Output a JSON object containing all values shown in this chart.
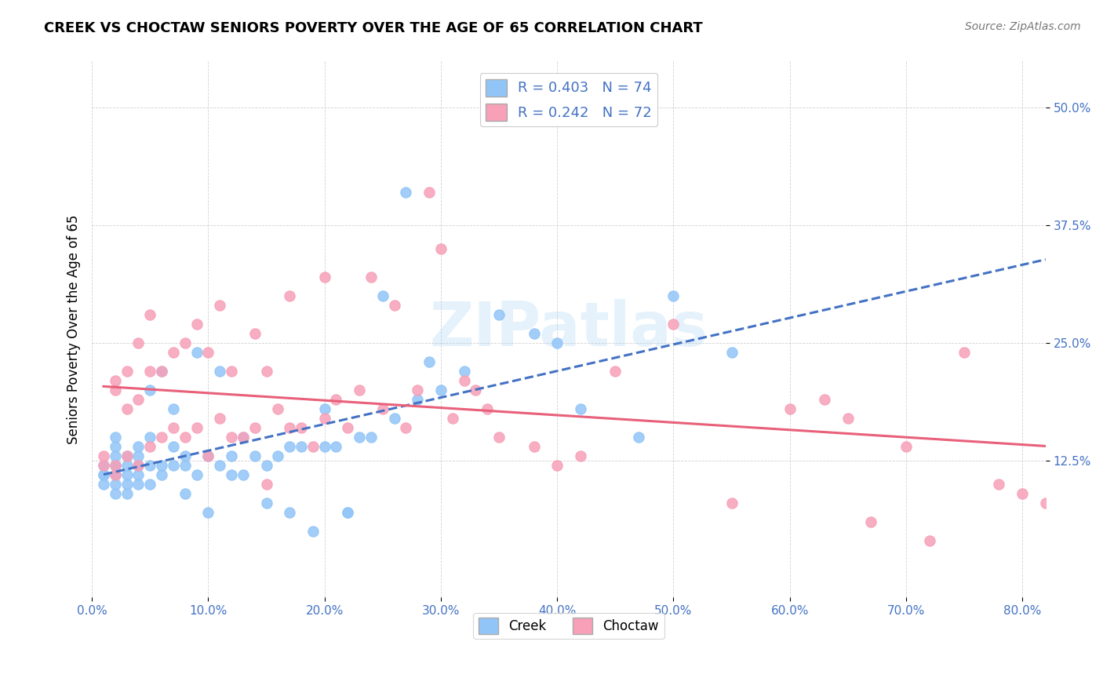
{
  "title": "CREEK VS CHOCTAW SENIORS POVERTY OVER THE AGE OF 65 CORRELATION CHART",
  "source": "Source: ZipAtlas.com",
  "xlabel_ticks": [
    "0.0%",
    "10.0%",
    "20.0%",
    "30.0%",
    "40.0%",
    "50.0%",
    "60.0%",
    "70.0%",
    "80.0%"
  ],
  "xlabel_vals": [
    0.0,
    0.1,
    0.2,
    0.3,
    0.4,
    0.5,
    0.6,
    0.7,
    0.8
  ],
  "ylabel_ticks": [
    "12.5%",
    "25.0%",
    "37.5%",
    "50.0%"
  ],
  "ylabel_vals": [
    0.125,
    0.25,
    0.375,
    0.5
  ],
  "ylabel_label": "Seniors Poverty Over the Age of 65",
  "creek_color": "#92C5F7",
  "choctaw_color": "#F7A0B8",
  "creek_line_color": "#4472C4",
  "choctaw_line_color": "#E8607A",
  "creek_R": 0.403,
  "creek_N": 74,
  "choctaw_R": 0.242,
  "choctaw_N": 72,
  "watermark": "ZIPatlas",
  "xlim": [
    0.0,
    0.82
  ],
  "ylim": [
    -0.02,
    0.55
  ],
  "creek_x": [
    0.01,
    0.01,
    0.01,
    0.01,
    0.02,
    0.02,
    0.02,
    0.02,
    0.02,
    0.02,
    0.02,
    0.02,
    0.03,
    0.03,
    0.03,
    0.03,
    0.03,
    0.04,
    0.04,
    0.04,
    0.04,
    0.04,
    0.05,
    0.05,
    0.05,
    0.05,
    0.06,
    0.06,
    0.06,
    0.07,
    0.07,
    0.07,
    0.08,
    0.08,
    0.08,
    0.09,
    0.09,
    0.1,
    0.1,
    0.11,
    0.11,
    0.12,
    0.12,
    0.13,
    0.13,
    0.14,
    0.15,
    0.15,
    0.16,
    0.17,
    0.17,
    0.18,
    0.19,
    0.2,
    0.2,
    0.21,
    0.22,
    0.22,
    0.23,
    0.24,
    0.25,
    0.26,
    0.27,
    0.28,
    0.29,
    0.3,
    0.32,
    0.35,
    0.38,
    0.4,
    0.42,
    0.47,
    0.5,
    0.55
  ],
  "creek_y": [
    0.1,
    0.11,
    0.11,
    0.12,
    0.09,
    0.1,
    0.11,
    0.12,
    0.12,
    0.13,
    0.14,
    0.15,
    0.09,
    0.1,
    0.11,
    0.12,
    0.13,
    0.1,
    0.11,
    0.12,
    0.13,
    0.14,
    0.1,
    0.12,
    0.15,
    0.2,
    0.11,
    0.12,
    0.22,
    0.12,
    0.14,
    0.18,
    0.09,
    0.12,
    0.13,
    0.11,
    0.24,
    0.07,
    0.13,
    0.12,
    0.22,
    0.11,
    0.13,
    0.11,
    0.15,
    0.13,
    0.08,
    0.12,
    0.13,
    0.07,
    0.14,
    0.14,
    0.05,
    0.14,
    0.18,
    0.14,
    0.07,
    0.07,
    0.15,
    0.15,
    0.3,
    0.17,
    0.41,
    0.19,
    0.23,
    0.2,
    0.22,
    0.28,
    0.26,
    0.25,
    0.18,
    0.15,
    0.3,
    0.24
  ],
  "choctaw_x": [
    0.01,
    0.01,
    0.02,
    0.02,
    0.02,
    0.02,
    0.03,
    0.03,
    0.03,
    0.04,
    0.04,
    0.04,
    0.05,
    0.05,
    0.05,
    0.06,
    0.06,
    0.07,
    0.07,
    0.08,
    0.08,
    0.09,
    0.09,
    0.1,
    0.1,
    0.11,
    0.11,
    0.12,
    0.12,
    0.13,
    0.14,
    0.14,
    0.15,
    0.15,
    0.16,
    0.17,
    0.17,
    0.18,
    0.19,
    0.2,
    0.2,
    0.21,
    0.22,
    0.23,
    0.24,
    0.25,
    0.26,
    0.27,
    0.28,
    0.29,
    0.3,
    0.31,
    0.32,
    0.33,
    0.34,
    0.35,
    0.38,
    0.4,
    0.42,
    0.45,
    0.5,
    0.55,
    0.6,
    0.63,
    0.65,
    0.67,
    0.7,
    0.72,
    0.75,
    0.78,
    0.8,
    0.82
  ],
  "choctaw_y": [
    0.12,
    0.13,
    0.11,
    0.12,
    0.2,
    0.21,
    0.13,
    0.18,
    0.22,
    0.12,
    0.19,
    0.25,
    0.14,
    0.22,
    0.28,
    0.15,
    0.22,
    0.16,
    0.24,
    0.15,
    0.25,
    0.16,
    0.27,
    0.13,
    0.24,
    0.17,
    0.29,
    0.15,
    0.22,
    0.15,
    0.16,
    0.26,
    0.1,
    0.22,
    0.18,
    0.16,
    0.3,
    0.16,
    0.14,
    0.17,
    0.32,
    0.19,
    0.16,
    0.2,
    0.32,
    0.18,
    0.29,
    0.16,
    0.2,
    0.41,
    0.35,
    0.17,
    0.21,
    0.2,
    0.18,
    0.15,
    0.14,
    0.12,
    0.13,
    0.22,
    0.27,
    0.08,
    0.18,
    0.19,
    0.17,
    0.06,
    0.14,
    0.04,
    0.24,
    0.1,
    0.09,
    0.08
  ]
}
